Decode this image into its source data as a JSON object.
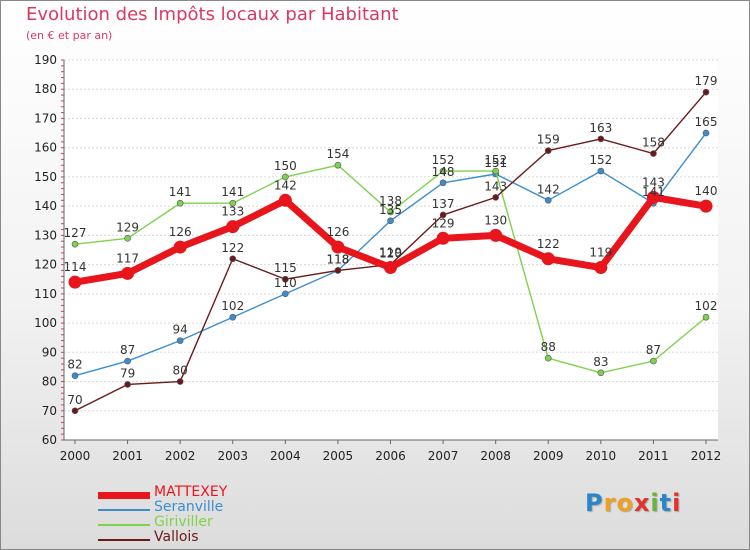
{
  "title": "Evolution des Impôts locaux par Habitant",
  "subtitle": "(en € et par an)",
  "logo": {
    "letters": [
      "P",
      "r",
      "o",
      "x",
      "i",
      "t",
      "i"
    ],
    "colors": [
      "#2a86c8",
      "#f0a020",
      "#f0a020",
      "#e2332b",
      "#6ab23e",
      "#2a86c8",
      "#e2332b"
    ]
  },
  "chart_data": {
    "type": "line",
    "title": "Evolution des Impôts locaux par Habitant",
    "subtitle": "(en € et par an)",
    "xlabel": "",
    "ylabel": "",
    "ylim": [
      60,
      190
    ],
    "yticks": [
      60,
      70,
      80,
      90,
      100,
      110,
      120,
      130,
      140,
      150,
      160,
      170,
      180,
      190
    ],
    "categories": [
      "2000",
      "2001",
      "2002",
      "2003",
      "2004",
      "2005",
      "2006",
      "2007",
      "2008",
      "2009",
      "2010",
      "2011",
      "2012"
    ],
    "grid": "horizontal",
    "legend": "bottom-left",
    "series": [
      {
        "name": "MATTEXEY",
        "color": "#e8161c",
        "values": [
          114,
          117,
          126,
          133,
          142,
          126,
          119,
          129,
          130,
          122,
          119,
          143,
          140
        ],
        "labels": [
          "114",
          "117",
          "126",
          "133",
          "142",
          "126",
          "119",
          "129",
          "130",
          "122",
          "119",
          "143",
          "140"
        ],
        "label_position": "above"
      },
      {
        "name": "Seranville",
        "color": "#3a8ed0",
        "values": [
          82,
          87,
          94,
          102,
          110,
          118,
          135,
          148,
          151,
          142,
          152,
          141,
          165
        ],
        "labels": [
          "82",
          "87",
          "94",
          "102",
          "110",
          "118",
          "135",
          "148",
          "151",
          "142",
          "152",
          "141",
          "165"
        ],
        "label_position": "above"
      },
      {
        "name": "Giriviller",
        "color": "#7ed24e",
        "values": [
          127,
          129,
          141,
          141,
          150,
          154,
          138,
          152,
          152,
          88,
          83,
          87,
          102
        ],
        "labels": [
          "127",
          "129",
          "141",
          "141",
          "150",
          "154",
          "138",
          "152",
          "152",
          "88",
          "83",
          "87",
          "102"
        ],
        "label_position": "above"
      },
      {
        "name": "Vallois",
        "color": "#6b1a1a",
        "values": [
          70,
          79,
          80,
          122,
          115,
          118,
          120,
          137,
          143,
          159,
          163,
          158,
          179
        ],
        "labels": [
          "70",
          "79",
          "80",
          "122",
          "115",
          "118",
          "120",
          "137",
          "143",
          "159",
          "163",
          "158",
          "179"
        ],
        "label_position": "above"
      }
    ]
  }
}
